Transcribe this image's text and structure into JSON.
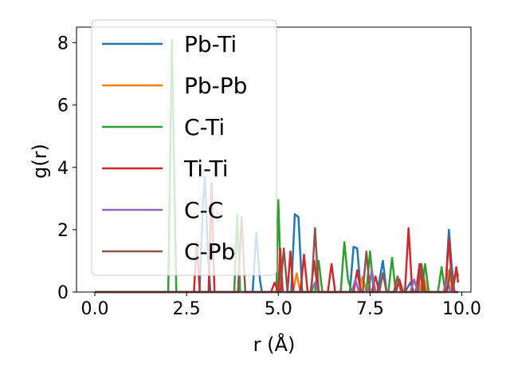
{
  "chart_data": {
    "type": "line",
    "xlabel": "r (Å)",
    "ylabel": "g(r)",
    "xlim": [
      -0.5,
      10.25
    ],
    "ylim": [
      0,
      8.5
    ],
    "xticks": [
      0.0,
      2.5,
      5.0,
      7.5,
      10.0
    ],
    "xtick_labels": [
      "0.0",
      "2.5",
      "5.0",
      "7.5",
      "10.0"
    ],
    "yticks": [
      0,
      2,
      4,
      6,
      8
    ],
    "ytick_labels": [
      "0",
      "2",
      "4",
      "6",
      "8"
    ],
    "grid": false,
    "legend_placement": "top-left",
    "series": [
      {
        "name": "Pb-Ti",
        "color": "#1f77b4",
        "points": [
          [
            0,
            0
          ],
          [
            2.85,
            0
          ],
          [
            2.95,
            2.9
          ],
          [
            3.0,
            3.7
          ],
          [
            3.08,
            1.2
          ],
          [
            3.15,
            0
          ],
          [
            4.3,
            0
          ],
          [
            4.4,
            1.9
          ],
          [
            4.5,
            0.4
          ],
          [
            4.55,
            0
          ],
          [
            5.35,
            0
          ],
          [
            5.45,
            2.5
          ],
          [
            5.55,
            2.4
          ],
          [
            5.65,
            0
          ],
          [
            6.95,
            0
          ],
          [
            7.05,
            1.45
          ],
          [
            7.15,
            1.4
          ],
          [
            7.25,
            0
          ],
          [
            7.7,
            0
          ],
          [
            7.85,
            1.0
          ],
          [
            7.95,
            0
          ],
          [
            8.45,
            0
          ],
          [
            8.6,
            0.3
          ],
          [
            8.7,
            0
          ],
          [
            9.55,
            0
          ],
          [
            9.65,
            2.0
          ],
          [
            9.72,
            0.9
          ],
          [
            9.8,
            0
          ],
          [
            9.9,
            0
          ]
        ]
      },
      {
        "name": "Pb-Pb",
        "color": "#ff7f0e",
        "points": [
          [
            0,
            0
          ],
          [
            5.4,
            0
          ],
          [
            5.5,
            0.6
          ],
          [
            5.6,
            0
          ],
          [
            7.2,
            0
          ],
          [
            7.3,
            0.5
          ],
          [
            7.4,
            0
          ],
          [
            8.85,
            0
          ],
          [
            8.95,
            0.6
          ],
          [
            9.05,
            0
          ],
          [
            9.55,
            0
          ],
          [
            9.65,
            0.7
          ],
          [
            9.75,
            0
          ],
          [
            9.9,
            0
          ]
        ]
      },
      {
        "name": "C-Ti",
        "color": "#2ca02c",
        "points": [
          [
            0,
            0
          ],
          [
            2.0,
            0
          ],
          [
            2.1,
            8.1
          ],
          [
            2.22,
            0
          ],
          [
            3.8,
            0
          ],
          [
            3.88,
            2.5
          ],
          [
            3.96,
            0
          ],
          [
            4.95,
            0
          ],
          [
            5.0,
            2.95
          ],
          [
            5.08,
            0
          ],
          [
            6.0,
            0
          ],
          [
            6.1,
            1.0
          ],
          [
            6.2,
            0
          ],
          [
            6.7,
            0
          ],
          [
            6.8,
            1.6
          ],
          [
            6.9,
            0.4
          ],
          [
            7.0,
            0
          ],
          [
            7.4,
            0
          ],
          [
            7.5,
            1.3
          ],
          [
            7.6,
            0
          ],
          [
            8.0,
            0
          ],
          [
            8.1,
            1.1
          ],
          [
            8.2,
            0
          ],
          [
            8.9,
            0
          ],
          [
            9.0,
            0.9
          ],
          [
            9.1,
            0
          ],
          [
            9.35,
            0
          ],
          [
            9.45,
            0.8
          ],
          [
            9.55,
            0
          ],
          [
            9.75,
            0
          ],
          [
            9.85,
            0.75
          ],
          [
            9.9,
            0.5
          ]
        ]
      },
      {
        "name": "Ti-Ti",
        "color": "#d62728",
        "points": [
          [
            0,
            0
          ],
          [
            2.7,
            0
          ],
          [
            2.78,
            1.6
          ],
          [
            2.86,
            0
          ],
          [
            3.1,
            0
          ],
          [
            3.18,
            3.5
          ],
          [
            3.26,
            0
          ],
          [
            4.8,
            0
          ],
          [
            4.9,
            0.3
          ],
          [
            5.0,
            0
          ],
          [
            5.05,
            1.4
          ],
          [
            5.12,
            0
          ],
          [
            5.25,
            0
          ],
          [
            5.33,
            1.3
          ],
          [
            5.41,
            0
          ],
          [
            5.6,
            0
          ],
          [
            5.7,
            1.2
          ],
          [
            5.8,
            0
          ],
          [
            5.88,
            0
          ],
          [
            5.98,
            1.0
          ],
          [
            6.08,
            0
          ],
          [
            6.35,
            0
          ],
          [
            6.45,
            0.9
          ],
          [
            6.55,
            0
          ],
          [
            7.05,
            0
          ],
          [
            7.15,
            0.7
          ],
          [
            7.25,
            0
          ],
          [
            7.55,
            0
          ],
          [
            7.65,
            0.5
          ],
          [
            7.75,
            0
          ],
          [
            8.2,
            0
          ],
          [
            8.3,
            0.4
          ],
          [
            8.4,
            0
          ],
          [
            8.45,
            0
          ],
          [
            8.55,
            2.05
          ],
          [
            8.65,
            0
          ],
          [
            8.75,
            0
          ],
          [
            8.85,
            0.9
          ],
          [
            8.95,
            0
          ],
          [
            9.55,
            0
          ],
          [
            9.65,
            1.7
          ],
          [
            9.75,
            0
          ],
          [
            9.85,
            0.8
          ],
          [
            9.9,
            0.3
          ]
        ]
      },
      {
        "name": "C-C",
        "color": "#9467bd",
        "points": [
          [
            0,
            0
          ],
          [
            5.9,
            0
          ],
          [
            6.0,
            0.3
          ],
          [
            6.1,
            0
          ],
          [
            7.0,
            0
          ],
          [
            7.1,
            0.4
          ],
          [
            7.2,
            0
          ],
          [
            7.45,
            0
          ],
          [
            7.55,
            0.7
          ],
          [
            7.65,
            0
          ],
          [
            8.6,
            0
          ],
          [
            8.7,
            0.4
          ],
          [
            8.8,
            0
          ],
          [
            9.5,
            0
          ],
          [
            9.6,
            0.4
          ],
          [
            9.7,
            0
          ],
          [
            9.9,
            0
          ]
        ]
      },
      {
        "name": "C-Pb",
        "color": "#8c564b",
        "points": [
          [
            0,
            0
          ],
          [
            3.9,
            0
          ],
          [
            4.0,
            2.4
          ],
          [
            4.1,
            0
          ],
          [
            5.05,
            0
          ],
          [
            5.15,
            1.4
          ],
          [
            5.25,
            0
          ],
          [
            5.9,
            0
          ],
          [
            6.0,
            2.05
          ],
          [
            6.1,
            0
          ],
          [
            7.3,
            0
          ],
          [
            7.4,
            1.3
          ],
          [
            7.5,
            0
          ],
          [
            7.75,
            0
          ],
          [
            7.85,
            0.6
          ],
          [
            7.95,
            0
          ],
          [
            8.15,
            0
          ],
          [
            8.25,
            0.5
          ],
          [
            8.35,
            0
          ],
          [
            8.8,
            0
          ],
          [
            8.9,
            0.9
          ],
          [
            9.0,
            0
          ],
          [
            9.6,
            0
          ],
          [
            9.7,
            0.8
          ],
          [
            9.8,
            0
          ],
          [
            9.9,
            0
          ]
        ]
      }
    ]
  }
}
